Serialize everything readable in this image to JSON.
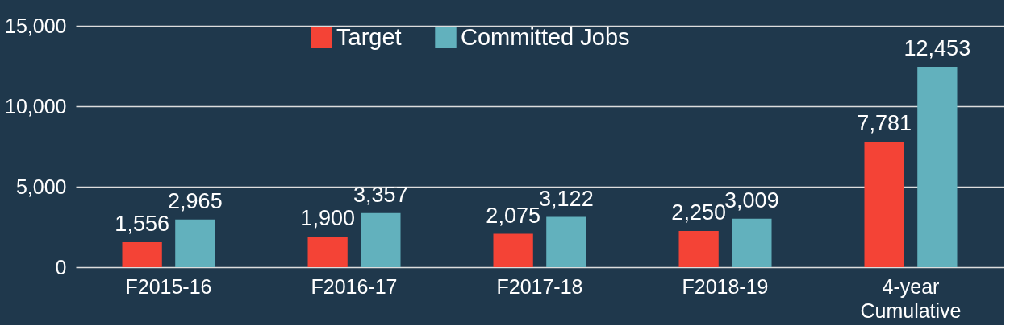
{
  "chart_data": {
    "type": "bar",
    "categories": [
      "F2015-16",
      "F2016-17",
      "F2017-18",
      "F2018-19",
      "4-year Cumulative"
    ],
    "series": [
      {
        "name": "Target",
        "color": "#f44336",
        "values": [
          1556,
          1900,
          2075,
          2250,
          7781
        ],
        "value_labels": [
          "1,556",
          "1,900",
          "2,075",
          "2,250",
          "7,781"
        ]
      },
      {
        "name": "Committed Jobs",
        "color": "#62b1bd",
        "values": [
          2965,
          3357,
          3122,
          3009,
          12453
        ],
        "value_labels": [
          "2,965",
          "3,357",
          "3,122",
          "3,009",
          "12,453"
        ]
      }
    ],
    "ylim": [
      0,
      15000
    ],
    "yticks": [
      0,
      {
        "value": 5000,
        "label": "5,000"
      },
      {
        "value": 10000,
        "label": "10,000"
      },
      {
        "value": 15000,
        "label": "15,000"
      }
    ],
    "grid": "y",
    "legend": "top"
  }
}
